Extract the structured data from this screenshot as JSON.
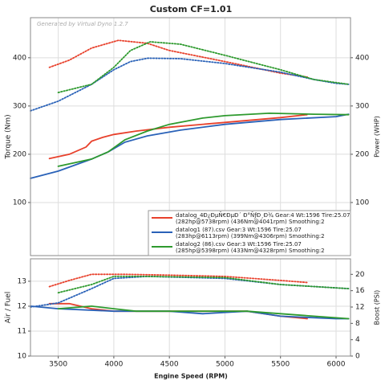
{
  "chart_data": [
    {
      "type": "line",
      "title": "Custom CF=1.01",
      "watermark": "Generated by Virtual Dyno 1.2.7",
      "ylabel": "Torque (Nm)",
      "y2label": "Power (WHP)",
      "xlim": [
        3250,
        6130
      ],
      "xticks": [
        3500,
        4000,
        4500,
        5000,
        5500,
        6000
      ],
      "ylim": [
        -10,
        483
      ],
      "yticks": [
        100,
        200,
        300,
        400
      ],
      "y2lim": [
        -10,
        483
      ],
      "y2ticks": [
        100,
        200,
        300,
        400
      ],
      "grid": true,
      "legend": [
        {
          "color": "#e8412c",
          "lines": [
            "datalog_4Ð¿ÐµÑ€ÐµÐ´ Ð°ÑƒÐ¸Ð¾ Gear:4 Wt:1596 Tire:25.07",
            "(282hp@5738rpm) (436Nm@4041rpm) Smoothing:2"
          ]
        },
        {
          "color": "#2a62b8",
          "lines": [
            "datalog1 (87).csv Gear:3 Wt:1596 Tire:25.07",
            "(283hp@6113rpm) (399Nm@4306rpm) Smoothing:2"
          ]
        },
        {
          "color": "#2e9a2e",
          "lines": [
            "datalog2 (86).csv Gear:3 Wt:1596 Tire:25.07",
            "(285hp@5398rpm) (433Nm@4328rpm) Smoothing:2"
          ]
        }
      ],
      "series": [
        {
          "color": "#e8412c",
          "style": "dotted",
          "x": [
            3420,
            3600,
            3800,
            4041,
            4300,
            4500,
            5000,
            5500,
            5740
          ],
          "values": [
            380,
            395,
            420,
            436,
            430,
            415,
            392,
            368,
            360
          ]
        },
        {
          "color": "#2a62b8",
          "style": "dotted",
          "x": [
            3250,
            3500,
            3800,
            4000,
            4150,
            4306,
            4600,
            5000,
            5500,
            5800,
            6000,
            6113
          ],
          "values": [
            290,
            310,
            345,
            375,
            392,
            399,
            398,
            388,
            370,
            355,
            347,
            345
          ]
        },
        {
          "color": "#2e9a2e",
          "style": "dotted",
          "x": [
            3500,
            3800,
            4000,
            4150,
            4328,
            4600,
            5000,
            5500,
            5800,
            6113
          ],
          "values": [
            328,
            345,
            380,
            415,
            433,
            428,
            405,
            375,
            355,
            345
          ]
        },
        {
          "color": "#e8412c",
          "style": "solid",
          "axis": "y2",
          "x": [
            3420,
            3600,
            3750,
            3800,
            3900,
            4000,
            4200,
            4500,
            5000,
            5500,
            5738
          ],
          "values": [
            191,
            200,
            215,
            227,
            235,
            241,
            248,
            256,
            266,
            276,
            282
          ]
        },
        {
          "color": "#2a62b8",
          "style": "solid",
          "axis": "y2",
          "x": [
            3250,
            3500,
            3800,
            3950,
            4100,
            4300,
            4600,
            5000,
            5500,
            6000,
            6113
          ],
          "values": [
            150,
            165,
            190,
            205,
            225,
            238,
            250,
            262,
            272,
            278,
            283
          ]
        },
        {
          "color": "#2e9a2e",
          "style": "solid",
          "axis": "y2",
          "x": [
            3500,
            3800,
            3950,
            4100,
            4300,
            4500,
            4800,
            5000,
            5398,
            5800,
            6113
          ],
          "values": [
            175,
            190,
            205,
            230,
            248,
            262,
            275,
            280,
            285,
            283,
            282
          ]
        }
      ]
    },
    {
      "type": "line",
      "xlabel": "Engine Speed (RPM)",
      "ylabel": "Air / Fuel",
      "y2label": "Boost (PSI)",
      "xlim": [
        3250,
        6130
      ],
      "xticks": [
        3500,
        4000,
        4500,
        5000,
        5500,
        6000
      ],
      "ylim": [
        10,
        13.9
      ],
      "yticks": [
        10,
        11,
        12,
        13
      ],
      "y2lim": [
        0,
        23.8
      ],
      "y2ticks": [
        0,
        4,
        8,
        12,
        16,
        20
      ],
      "grid": true,
      "series": [
        {
          "color": "#e8412c",
          "style": "solid",
          "x": [
            3420,
            3600,
            3800,
            4000,
            4500,
            5000,
            5200,
            5500,
            5740
          ],
          "values": [
            12.1,
            12.1,
            11.9,
            11.8,
            11.8,
            11.8,
            11.8,
            11.6,
            11.5
          ]
        },
        {
          "color": "#2a62b8",
          "style": "solid",
          "x": [
            3250,
            3500,
            4000,
            4500,
            4800,
            5000,
            5200,
            5500,
            6000,
            6113
          ],
          "values": [
            12.0,
            11.9,
            11.8,
            11.8,
            11.7,
            11.75,
            11.8,
            11.6,
            11.5,
            11.5
          ]
        },
        {
          "color": "#2e9a2e",
          "style": "solid",
          "x": [
            3500,
            3800,
            4000,
            4200,
            4600,
            5200,
            5500,
            5800,
            6113
          ],
          "values": [
            11.9,
            12.0,
            11.9,
            11.8,
            11.8,
            11.8,
            11.7,
            11.6,
            11.5
          ]
        },
        {
          "color": "#e8412c",
          "style": "dotted",
          "axis": "y2",
          "x": [
            3420,
            3600,
            3800,
            4100,
            4500,
            5000,
            5500,
            5740
          ],
          "values": [
            17,
            18.5,
            20,
            20,
            19.8,
            19.5,
            18.5,
            18
          ]
        },
        {
          "color": "#2a62b8",
          "style": "dotted",
          "axis": "y2",
          "x": [
            3250,
            3500,
            3800,
            4000,
            4300,
            5000,
            5500,
            6113
          ],
          "values": [
            12,
            13,
            16.5,
            19,
            19.5,
            19,
            17.5,
            16.5
          ]
        },
        {
          "color": "#2e9a2e",
          "style": "dotted",
          "axis": "y2",
          "x": [
            3500,
            3800,
            4000,
            4300,
            5000,
            5500,
            6113
          ],
          "values": [
            15.5,
            17.5,
            19.5,
            19.5,
            19.2,
            17.5,
            16.5
          ]
        }
      ]
    }
  ]
}
